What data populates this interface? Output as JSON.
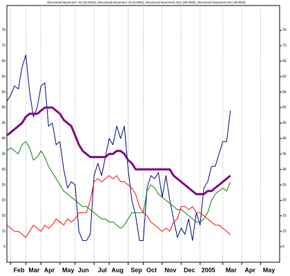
{
  "chart_data": {
    "type": "line",
    "title": "Directional Movement +DI (26.0000), Directional Movement -DI (9.0000), Directional Movement ADX (28.0000), Directional Movement DX (49.0000)",
    "x": [
      0,
      1,
      2,
      3,
      4,
      5,
      6,
      7,
      8,
      9,
      10,
      11,
      12,
      13,
      14,
      15,
      16,
      17,
      18,
      19,
      20,
      21,
      22,
      23,
      24,
      25,
      26,
      27,
      28,
      29,
      30,
      31,
      32,
      33,
      34,
      35,
      36,
      37,
      38,
      39,
      40,
      41,
      42,
      43,
      44,
      45,
      46,
      47,
      48,
      49,
      50,
      51,
      52,
      53,
      54,
      55,
      56,
      57,
      58,
      59
    ],
    "xlim": [
      0,
      72
    ],
    "xticks": [
      {
        "value": 1,
        "label": "Feb"
      },
      {
        "value": 5,
        "label": "Mar"
      },
      {
        "value": 9,
        "label": "Apr"
      },
      {
        "value": 14,
        "label": "May"
      },
      {
        "value": 18,
        "label": "Jun"
      },
      {
        "value": 23,
        "label": "Jul"
      },
      {
        "value": 27,
        "label": "Aug"
      },
      {
        "value": 32,
        "label": "Sep"
      },
      {
        "value": 36,
        "label": "Oct"
      },
      {
        "value": 41,
        "label": "Nov"
      },
      {
        "value": 46,
        "label": "Dec"
      },
      {
        "value": 51,
        "label": "2005"
      },
      {
        "value": 57,
        "label": "Mar"
      },
      {
        "value": 62,
        "label": "Apr"
      },
      {
        "value": 67,
        "label": "May"
      }
    ],
    "ylim": [
      0,
      83
    ],
    "yticks": [
      5,
      10,
      15,
      20,
      25,
      30,
      35,
      40,
      45,
      50,
      55,
      60,
      65,
      70,
      75
    ],
    "grid": true,
    "series": [
      {
        "name": "DX",
        "color": "#00007f",
        "width": 1,
        "values": [
          52,
          54,
          57,
          56,
          63,
          67,
          55,
          47,
          50,
          57,
          58,
          44,
          45,
          38,
          39,
          30,
          24,
          26,
          25,
          10,
          7,
          7,
          9,
          28,
          32,
          28,
          34,
          40,
          38,
          44,
          40,
          44,
          30,
          20,
          15,
          7,
          7,
          24,
          28,
          27,
          29,
          21,
          28,
          20,
          14,
          8,
          11,
          9,
          14,
          7,
          16,
          12,
          24,
          26,
          31,
          31,
          35,
          39,
          39,
          49
        ]
      },
      {
        "name": "ADX",
        "color": "#800080",
        "width": 3,
        "values": [
          41,
          42,
          43,
          44,
          45,
          47,
          48,
          48,
          48,
          49,
          50,
          50,
          50,
          49,
          48,
          46,
          45,
          44,
          41,
          38,
          36,
          35,
          34,
          34,
          34,
          34,
          34,
          35,
          35,
          36,
          36,
          35,
          33,
          32,
          30,
          30,
          30,
          30,
          30,
          30,
          30,
          30,
          30,
          30,
          28,
          27,
          26,
          25,
          24,
          23,
          22,
          22,
          22,
          23,
          23,
          24,
          25,
          26,
          27,
          28
        ]
      },
      {
        "name": "+DI",
        "color": "#008000",
        "width": 1,
        "values": [
          36,
          37,
          36,
          35,
          38,
          39,
          37,
          33,
          34,
          36,
          34,
          31,
          29,
          27,
          25,
          23,
          22,
          21,
          20,
          19,
          18,
          18,
          17,
          16,
          15,
          14,
          14,
          13,
          13,
          12,
          11,
          12,
          14,
          16,
          16,
          16,
          16,
          23,
          25,
          24,
          22,
          21,
          20,
          19,
          18,
          17,
          17,
          16,
          15,
          14,
          13,
          13,
          14,
          16,
          20,
          22,
          23,
          24,
          23,
          26
        ]
      },
      {
        "name": "-DI",
        "color": "#ff0000",
        "width": 1,
        "values": [
          12,
          11,
          10,
          10,
          9,
          8,
          10,
          12,
          11,
          10,
          12,
          11,
          12,
          14,
          13,
          12,
          14,
          13,
          14,
          16,
          16,
          16,
          20,
          26,
          27,
          26,
          27,
          28,
          27,
          28,
          26,
          26,
          25,
          24,
          22,
          18,
          16,
          15,
          13,
          12,
          11,
          10,
          11,
          10,
          13,
          14,
          18,
          18,
          17,
          18,
          16,
          16,
          15,
          14,
          13,
          12,
          12,
          11,
          10,
          9
        ]
      }
    ]
  }
}
